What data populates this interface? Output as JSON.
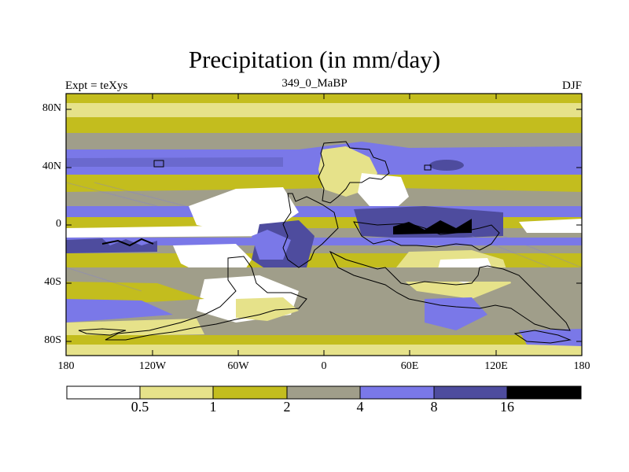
{
  "title": "Precipitation (in mm/day)",
  "left_string": "Expt = teXys",
  "center_string": "349_0_MaBP",
  "right_string": "DJF",
  "lat_labels": [
    "80N",
    "40N",
    "0",
    "40S",
    "80S"
  ],
  "lon_labels": [
    "180",
    "120W",
    "60W",
    "0",
    "60E",
    "120E",
    "180"
  ],
  "colorbar": {
    "levels": [
      "0.5",
      "1",
      "2",
      "4",
      "8",
      "16"
    ],
    "colors": [
      "#ffffff",
      "#e6e28a",
      "#c3bd1e",
      "#a09e8a",
      "#7a78e8",
      "#4e4c9e",
      "#000000"
    ]
  }
}
